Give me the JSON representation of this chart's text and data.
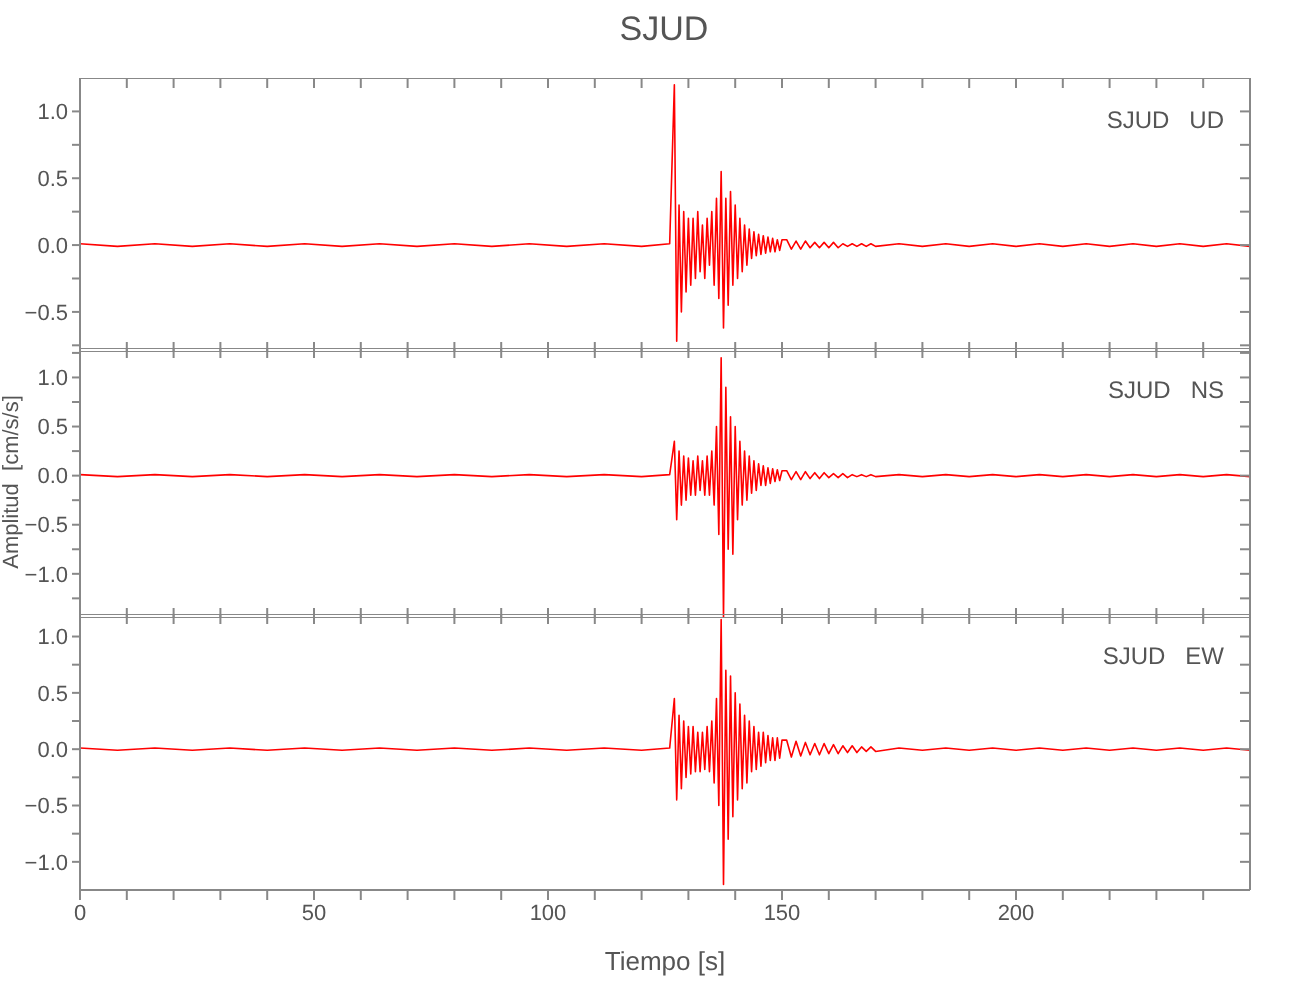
{
  "chart_data": [
    {
      "type": "line",
      "title": "SJUD",
      "annotations": [
        "SJUD   UD"
      ],
      "tick_labels": "y",
      "x": [
        0,
        8,
        16,
        24,
        32,
        40,
        48,
        56,
        64,
        72,
        80,
        88,
        96,
        104,
        112,
        120,
        126,
        127,
        127.5,
        128,
        128.5,
        129,
        129.5,
        130,
        130.5,
        131,
        131.5,
        132,
        132.5,
        133,
        133.5,
        134,
        134.5,
        135,
        135.5,
        136,
        136.5,
        137,
        137.5,
        138,
        138.5,
        139,
        139.5,
        140,
        140.5,
        141,
        141.5,
        142,
        142.5,
        143,
        143.5,
        144,
        144.5,
        145,
        145.5,
        146,
        146.5,
        147,
        147.5,
        148,
        148.5,
        149,
        149.5,
        150,
        151,
        152,
        153,
        154,
        155,
        156,
        157,
        158,
        159,
        160,
        161,
        162,
        163,
        164,
        165,
        166,
        167,
        168,
        169,
        170,
        175,
        180,
        185,
        190,
        195,
        200,
        205,
        210,
        215,
        220,
        225,
        230,
        235,
        240,
        245,
        250
      ],
      "series": [
        {
          "color": "#ff0000",
          "values": [
            0.01,
            -0.01,
            0.01,
            -0.01,
            0.01,
            -0.01,
            0.01,
            -0.01,
            0.01,
            -0.01,
            0.01,
            -0.01,
            0.01,
            -0.01,
            0.01,
            -0.01,
            0.01,
            1.2,
            -0.72,
            0.3,
            -0.5,
            0.25,
            -0.35,
            0.2,
            -0.3,
            0.2,
            -0.25,
            0.25,
            -0.2,
            0.15,
            -0.25,
            0.2,
            -0.15,
            0.25,
            -0.3,
            0.35,
            -0.4,
            0.55,
            -0.62,
            0.35,
            -0.45,
            0.4,
            -0.3,
            0.3,
            -0.25,
            0.2,
            -0.2,
            0.15,
            -0.15,
            0.12,
            -0.1,
            0.1,
            -0.08,
            0.08,
            -0.07,
            0.07,
            -0.06,
            0.06,
            -0.05,
            0.05,
            -0.05,
            0.04,
            -0.04,
            0.04,
            0.04,
            -0.03,
            0.03,
            -0.03,
            0.03,
            -0.02,
            0.02,
            -0.02,
            0.02,
            -0.02,
            0.02,
            -0.02,
            0.01,
            -0.01,
            0.01,
            -0.01,
            0.01,
            -0.01,
            0.01,
            -0.01,
            0.01,
            -0.01,
            0.01,
            -0.01,
            0.01,
            -0.01,
            0.01,
            -0.01,
            0.01,
            -0.01,
            0.01,
            -0.01,
            0.01,
            -0.01,
            0.01,
            -0.01
          ]
        }
      ],
      "xlim": [
        0,
        250
      ],
      "xticks": [
        0,
        {
          "value": 10,
          "label": null
        },
        {
          "value": 20,
          "label": null
        },
        {
          "value": 30,
          "label": null
        },
        {
          "value": 40,
          "label": null
        },
        50,
        {
          "value": 60,
          "label": null
        },
        {
          "value": 70,
          "label": null
        },
        {
          "value": 80,
          "label": null
        },
        {
          "value": 90,
          "label": null
        },
        100,
        {
          "value": 110,
          "label": null
        },
        {
          "value": 120,
          "label": null
        },
        {
          "value": 130,
          "label": null
        },
        {
          "value": 140,
          "label": null
        },
        150,
        {
          "value": 160,
          "label": null
        },
        {
          "value": 170,
          "label": null
        },
        {
          "value": 180,
          "label": null
        },
        {
          "value": 190,
          "label": null
        },
        200,
        {
          "value": 210,
          "label": null
        },
        {
          "value": 220,
          "label": null
        },
        {
          "value": 230,
          "label": null
        },
        {
          "value": 240,
          "label": null
        }
      ],
      "ylim": [
        -0.8,
        1.25
      ],
      "yticks": [
        {
          "value": -0.75,
          "label": null
        },
        {
          "value": -0.5,
          "label": "−0.5"
        },
        {
          "value": -0.25,
          "label": null
        },
        {
          "value": 0,
          "label": "0.0"
        },
        {
          "value": 0.25,
          "label": null
        },
        {
          "value": 0.5,
          "label": "0.5"
        },
        {
          "value": 0.75,
          "label": null
        },
        {
          "value": 1,
          "label": "1.0"
        }
      ]
    },
    {
      "type": "line",
      "ylabel": "Amplitud  [cm/s/s]",
      "annotations": [
        "SJUD   NS"
      ],
      "tick_labels": "y",
      "x": [
        0,
        8,
        16,
        24,
        32,
        40,
        48,
        56,
        64,
        72,
        80,
        88,
        96,
        104,
        112,
        120,
        126,
        127,
        127.5,
        128,
        128.5,
        129,
        129.5,
        130,
        130.5,
        131,
        131.5,
        132,
        132.5,
        133,
        133.5,
        134,
        134.5,
        135,
        135.5,
        136,
        136.5,
        137,
        137.5,
        138,
        138.5,
        139,
        139.5,
        140,
        140.5,
        141,
        141.5,
        142,
        142.5,
        143,
        143.5,
        144,
        144.5,
        145,
        145.5,
        146,
        146.5,
        147,
        147.5,
        148,
        148.5,
        149,
        149.5,
        150,
        151,
        152,
        153,
        154,
        155,
        156,
        157,
        158,
        159,
        160,
        161,
        162,
        163,
        164,
        165,
        166,
        167,
        168,
        169,
        170,
        175,
        180,
        185,
        190,
        195,
        200,
        205,
        210,
        215,
        220,
        225,
        230,
        235,
        240,
        245,
        250
      ],
      "series": [
        {
          "color": "#ff0000",
          "values": [
            0.01,
            -0.01,
            0.01,
            -0.01,
            0.01,
            -0.01,
            0.01,
            -0.01,
            0.01,
            -0.01,
            0.01,
            -0.01,
            0.01,
            -0.01,
            0.01,
            -0.01,
            0.01,
            0.35,
            -0.45,
            0.25,
            -0.3,
            0.2,
            -0.25,
            0.18,
            -0.2,
            0.15,
            -0.2,
            0.2,
            -0.15,
            0.15,
            -0.2,
            0.2,
            -0.2,
            0.25,
            -0.3,
            0.5,
            -0.6,
            1.2,
            -1.45,
            0.9,
            -0.75,
            0.6,
            -0.8,
            0.5,
            -0.45,
            0.35,
            -0.3,
            0.25,
            -0.25,
            0.2,
            -0.18,
            0.15,
            -0.15,
            0.12,
            -0.1,
            0.1,
            -0.1,
            0.08,
            -0.08,
            0.07,
            -0.06,
            0.06,
            -0.05,
            0.05,
            0.05,
            -0.04,
            0.04,
            -0.04,
            0.04,
            -0.03,
            0.03,
            -0.03,
            0.03,
            -0.02,
            0.02,
            -0.02,
            0.02,
            -0.02,
            0.01,
            -0.01,
            0.01,
            -0.01,
            0.01,
            -0.01,
            0.01,
            -0.01,
            0.01,
            -0.01,
            0.01,
            -0.01,
            0.01,
            -0.01,
            0.01,
            -0.01,
            0.01,
            -0.01,
            0.01,
            -0.01,
            0.01,
            -0.01
          ]
        }
      ],
      "xlim": [
        0,
        250
      ],
      "xticks": [
        0,
        {
          "value": 10,
          "label": null
        },
        {
          "value": 20,
          "label": null
        },
        {
          "value": 30,
          "label": null
        },
        {
          "value": 40,
          "label": null
        },
        50,
        {
          "value": 60,
          "label": null
        },
        {
          "value": 70,
          "label": null
        },
        {
          "value": 80,
          "label": null
        },
        {
          "value": 90,
          "label": null
        },
        100,
        {
          "value": 110,
          "label": null
        },
        {
          "value": 120,
          "label": null
        },
        {
          "value": 130,
          "label": null
        },
        {
          "value": 140,
          "label": null
        },
        150,
        {
          "value": 160,
          "label": null
        },
        {
          "value": 170,
          "label": null
        },
        {
          "value": 180,
          "label": null
        },
        {
          "value": 190,
          "label": null
        },
        200,
        {
          "value": 210,
          "label": null
        },
        {
          "value": 220,
          "label": null
        },
        {
          "value": 230,
          "label": null
        },
        {
          "value": 240,
          "label": null
        }
      ],
      "ylim": [
        -1.45,
        1.3
      ],
      "yticks": [
        {
          "value": -1.25,
          "label": null
        },
        {
          "value": -1,
          "label": "−1.0"
        },
        {
          "value": -0.75,
          "label": null
        },
        {
          "value": -0.5,
          "label": "−0.5"
        },
        {
          "value": -0.25,
          "label": null
        },
        {
          "value": 0,
          "label": "0.0"
        },
        {
          "value": 0.25,
          "label": null
        },
        {
          "value": 0.5,
          "label": "0.5"
        },
        {
          "value": 0.75,
          "label": null
        },
        {
          "value": 1,
          "label": "1.0"
        },
        {
          "value": 1.25,
          "label": null
        }
      ]
    },
    {
      "type": "line",
      "xlabel": "Tiempo  [s]",
      "annotations": [
        "SJUD   EW"
      ],
      "x": [
        0,
        8,
        16,
        24,
        32,
        40,
        48,
        56,
        64,
        72,
        80,
        88,
        96,
        104,
        112,
        120,
        126,
        127,
        127.5,
        128,
        128.5,
        129,
        129.5,
        130,
        130.5,
        131,
        131.5,
        132,
        132.5,
        133,
        133.5,
        134,
        134.5,
        135,
        135.5,
        136,
        136.5,
        137,
        137.5,
        138,
        138.5,
        139,
        139.5,
        140,
        140.5,
        141,
        141.5,
        142,
        142.5,
        143,
        143.5,
        144,
        144.5,
        145,
        145.5,
        146,
        146.5,
        147,
        147.5,
        148,
        148.5,
        149,
        149.5,
        150,
        151,
        152,
        153,
        154,
        155,
        156,
        157,
        158,
        159,
        160,
        161,
        162,
        163,
        164,
        165,
        166,
        167,
        168,
        169,
        170,
        175,
        180,
        185,
        190,
        195,
        200,
        205,
        210,
        215,
        220,
        225,
        230,
        235,
        240,
        245,
        250
      ],
      "series": [
        {
          "color": "#ff0000",
          "values": [
            0.01,
            -0.01,
            0.01,
            -0.01,
            0.01,
            -0.01,
            0.01,
            -0.01,
            0.01,
            -0.01,
            0.01,
            -0.01,
            0.01,
            -0.01,
            0.01,
            -0.01,
            0.01,
            0.45,
            -0.45,
            0.3,
            -0.35,
            0.25,
            -0.25,
            0.2,
            -0.22,
            0.2,
            -0.2,
            0.15,
            -0.2,
            0.15,
            -0.18,
            0.2,
            -0.2,
            0.25,
            -0.3,
            0.45,
            -0.5,
            1.15,
            -1.2,
            0.7,
            -0.8,
            0.65,
            -0.6,
            0.5,
            -0.45,
            0.4,
            -0.35,
            0.3,
            -0.3,
            0.25,
            -0.2,
            0.2,
            -0.18,
            0.15,
            -0.15,
            0.15,
            -0.12,
            0.12,
            -0.1,
            0.1,
            -0.1,
            0.1,
            -0.08,
            0.08,
            0.08,
            -0.07,
            0.07,
            -0.06,
            0.06,
            -0.05,
            0.05,
            -0.05,
            0.05,
            -0.04,
            0.04,
            -0.04,
            0.03,
            -0.03,
            0.03,
            -0.03,
            0.02,
            -0.02,
            0.02,
            -0.02,
            0.01,
            -0.01,
            0.01,
            -0.01,
            0.01,
            -0.01,
            0.01,
            -0.01,
            0.01,
            -0.01,
            0.01,
            -0.01,
            0.01,
            -0.01,
            0.01,
            -0.01
          ]
        }
      ],
      "xlim": [
        0,
        250
      ],
      "xticks": [
        0,
        {
          "value": 10,
          "label": null
        },
        {
          "value": 20,
          "label": null
        },
        {
          "value": 30,
          "label": null
        },
        {
          "value": 40,
          "label": null
        },
        50,
        {
          "value": 60,
          "label": null
        },
        {
          "value": 70,
          "label": null
        },
        {
          "value": 80,
          "label": null
        },
        {
          "value": 90,
          "label": null
        },
        100,
        {
          "value": 110,
          "label": null
        },
        {
          "value": 120,
          "label": null
        },
        {
          "value": 130,
          "label": null
        },
        {
          "value": 140,
          "label": null
        },
        150,
        {
          "value": 160,
          "label": null
        },
        {
          "value": 170,
          "label": null
        },
        {
          "value": 180,
          "label": null
        },
        {
          "value": 190,
          "label": null
        },
        200,
        {
          "value": 210,
          "label": null
        },
        {
          "value": 220,
          "label": null
        },
        {
          "value": 230,
          "label": null
        },
        {
          "value": 240,
          "label": null
        }
      ],
      "ylim": [
        -1.25,
        1.2
      ],
      "yticks": [
        {
          "value": -1,
          "label": "−1.0"
        },
        {
          "value": -0.75,
          "label": null
        },
        {
          "value": -0.5,
          "label": "−0.5"
        },
        {
          "value": -0.25,
          "label": null
        },
        {
          "value": 0,
          "label": "0.0"
        },
        {
          "value": 0.25,
          "label": null
        },
        {
          "value": 0.5,
          "label": "0.5"
        },
        {
          "value": 0.75,
          "label": null
        },
        {
          "value": 1,
          "label": "1.0"
        }
      ]
    }
  ]
}
